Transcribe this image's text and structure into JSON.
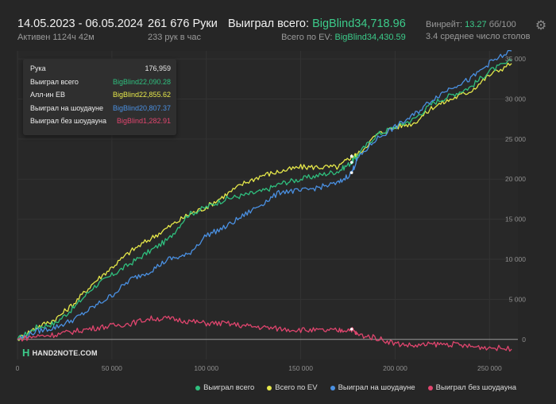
{
  "header": {
    "date_range": "14.05.2023 - 06.05.2024",
    "active": "Активен 1124ч 42м",
    "hands": "261 676 Руки",
    "hands_per_hour": "233 рук в час",
    "won_total_label": "Выиграл всего:",
    "won_total_value": "BigBlind34,718.96",
    "ev_label": "Всего по EV:",
    "ev_value": "BigBlind34,430.59",
    "winrate_label": "Винрейт:",
    "winrate_value": "13.27",
    "winrate_unit": "бб/100",
    "tables": "3.4 среднее число столов"
  },
  "tooltip": {
    "rows": [
      {
        "label": "Рука",
        "value": "176,959",
        "color": "#e6e6e6"
      },
      {
        "label": "Выиграл всего",
        "value": "BigBlind22,090.28",
        "color": "#2fbf7e"
      },
      {
        "label": "Алл-ин ЕВ",
        "value": "BigBlind22,855.62",
        "color": "#e6e84a"
      },
      {
        "label": "Выиграл на шоудауне",
        "value": "BigBlind20,807.37",
        "color": "#4a90e2"
      },
      {
        "label": "Выиграл без шоудауна",
        "value": "BigBlind1,282.91",
        "color": "#e0456e"
      }
    ]
  },
  "logo_text": "HAND2NOTE.COM",
  "chart_data": {
    "type": "line",
    "xlabel": "",
    "ylabel": "",
    "xlim": [
      0,
      265000
    ],
    "ylim": [
      -2500,
      36000
    ],
    "x_ticks": [
      0,
      50000,
      100000,
      150000,
      200000,
      250000
    ],
    "x_tick_labels": [
      "0",
      "50 000",
      "100 000",
      "150 000",
      "200 000",
      "250 000"
    ],
    "y_ticks": [
      0,
      5000,
      10000,
      15000,
      20000,
      25000,
      30000,
      35000
    ],
    "y_tick_labels": [
      "0",
      "5 000",
      "10 000",
      "15 000",
      "20 000",
      "25 000",
      "30 000",
      "35 000"
    ],
    "series": [
      {
        "name": "Выиграл всего",
        "color": "#2fbf7e",
        "x": [
          0,
          10000,
          20000,
          30000,
          40000,
          50000,
          60000,
          70000,
          80000,
          90000,
          100000,
          110000,
          120000,
          130000,
          140000,
          150000,
          160000,
          170000,
          176959,
          180000,
          190000,
          200000,
          210000,
          220000,
          230000,
          240000,
          250000,
          261676
        ],
        "y": [
          0,
          1500,
          2000,
          4000,
          6500,
          8000,
          9500,
          11000,
          12500,
          15500,
          16500,
          17500,
          18000,
          18500,
          19500,
          20000,
          20500,
          21000,
          22090,
          23000,
          25500,
          26500,
          27500,
          29500,
          30500,
          31500,
          33500,
          34719
        ]
      },
      {
        "name": "Всего по EV",
        "color": "#e6e84a",
        "x": [
          0,
          10000,
          20000,
          30000,
          40000,
          50000,
          60000,
          70000,
          80000,
          90000,
          100000,
          110000,
          120000,
          130000,
          140000,
          150000,
          160000,
          170000,
          176959,
          180000,
          190000,
          200000,
          210000,
          220000,
          230000,
          240000,
          250000,
          261676
        ],
        "y": [
          0,
          1500,
          2500,
          4500,
          7000,
          9000,
          11000,
          12500,
          14000,
          15500,
          16500,
          18000,
          19500,
          20500,
          21000,
          21500,
          21500,
          21500,
          22856,
          23000,
          25500,
          26500,
          27000,
          29000,
          30000,
          31000,
          33000,
          34431
        ]
      },
      {
        "name": "Выиграл на шоудауне",
        "color": "#4a90e2",
        "x": [
          0,
          10000,
          20000,
          30000,
          40000,
          50000,
          60000,
          70000,
          80000,
          90000,
          100000,
          110000,
          120000,
          130000,
          140000,
          150000,
          160000,
          170000,
          176959,
          180000,
          190000,
          200000,
          210000,
          220000,
          230000,
          240000,
          250000,
          261676
        ],
        "y": [
          0,
          1000,
          1500,
          2500,
          4000,
          5500,
          7500,
          8500,
          10000,
          10500,
          13000,
          14000,
          15500,
          17000,
          18500,
          18500,
          19000,
          19500,
          20807,
          22500,
          25000,
          26500,
          28000,
          30000,
          31500,
          32500,
          34500,
          36000
        ]
      },
      {
        "name": "Выиграл без шоудауна",
        "color": "#e0456e",
        "x": [
          0,
          10000,
          20000,
          30000,
          40000,
          50000,
          60000,
          70000,
          80000,
          90000,
          100000,
          110000,
          120000,
          130000,
          140000,
          150000,
          160000,
          170000,
          176959,
          180000,
          190000,
          200000,
          210000,
          220000,
          230000,
          240000,
          250000,
          261676
        ],
        "y": [
          0,
          400,
          600,
          1000,
          1400,
          1700,
          2000,
          2600,
          2600,
          2300,
          2000,
          2000,
          1700,
          1500,
          1300,
          1200,
          1100,
          1100,
          1283,
          600,
          200,
          -500,
          -800,
          -600,
          -600,
          -900,
          -1000,
          -1200
        ]
      }
    ]
  },
  "legend": [
    {
      "label": "Выиграл всего",
      "color": "#2fbf7e"
    },
    {
      "label": "Всего по EV",
      "color": "#e6e84a"
    },
    {
      "label": "Выиграл на шоудауне",
      "color": "#4a90e2"
    },
    {
      "label": "Выиграл без шоудауна",
      "color": "#e0456e"
    }
  ]
}
